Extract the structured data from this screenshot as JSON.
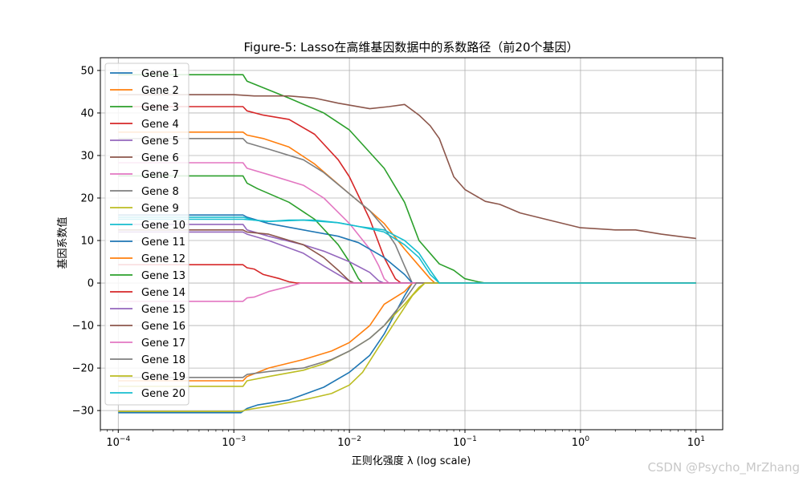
{
  "watermark": "CSDN @Psycho_MrZhang",
  "chart_data": {
    "type": "line",
    "title": "Figure-5: Lasso在高维基因数据中的系数路径（前20个基因）",
    "xlabel": "正则化强度 λ (log scale)",
    "ylabel": "基因系数值",
    "xscale": "log",
    "xlim": [
      7e-05,
      17
    ],
    "ylim": [
      -34.5,
      53
    ],
    "x_ticks": [
      0.0001,
      0.001,
      0.01,
      0.1,
      1,
      10
    ],
    "x_tick_labels": [
      {
        "base": "10",
        "exp": "−4"
      },
      {
        "base": "10",
        "exp": "−3"
      },
      {
        "base": "10",
        "exp": "−2"
      },
      {
        "base": "10",
        "exp": "−1"
      },
      {
        "base": "10",
        "exp": "0"
      },
      {
        "base": "10",
        "exp": "1"
      }
    ],
    "y_ticks": [
      -30,
      -20,
      -10,
      0,
      10,
      20,
      30,
      40,
      50
    ],
    "y_tick_labels": [
      "−30",
      "−20",
      "−10",
      "0",
      "10",
      "20",
      "30",
      "40",
      "50"
    ],
    "grid": true,
    "legend_position": "top-left",
    "series": [
      {
        "name": "Gene 1",
        "color": "#1f77b4",
        "points": [
          [
            0.0001,
            -30.5
          ],
          [
            0.00115,
            -30.5
          ],
          [
            0.0013,
            -29.5
          ],
          [
            0.0016,
            -28.7
          ],
          [
            0.003,
            -27.5
          ],
          [
            0.006,
            -24.5
          ],
          [
            0.01,
            -21
          ],
          [
            0.015,
            -17
          ],
          [
            0.02,
            -12
          ],
          [
            0.025,
            -7
          ],
          [
            0.03,
            -3
          ],
          [
            0.035,
            0
          ],
          [
            10,
            0
          ]
        ]
      },
      {
        "name": "Gene 2",
        "color": "#ff7f0e",
        "points": [
          [
            0.0001,
            35.5
          ],
          [
            0.0012,
            35.5
          ],
          [
            0.0013,
            34.8
          ],
          [
            0.0018,
            34
          ],
          [
            0.003,
            32
          ],
          [
            0.005,
            28
          ],
          [
            0.01,
            21
          ],
          [
            0.015,
            17
          ],
          [
            0.02,
            14
          ],
          [
            0.03,
            8
          ],
          [
            0.05,
            1
          ],
          [
            0.055,
            0
          ],
          [
            10,
            0
          ]
        ]
      },
      {
        "name": "Gene 3",
        "color": "#2ca02c",
        "points": [
          [
            0.0001,
            49
          ],
          [
            0.0012,
            49
          ],
          [
            0.0013,
            47.5
          ],
          [
            0.0016,
            46.5
          ],
          [
            0.003,
            43.5
          ],
          [
            0.006,
            40
          ],
          [
            0.01,
            36
          ],
          [
            0.02,
            27
          ],
          [
            0.03,
            19
          ],
          [
            0.04,
            10
          ],
          [
            0.06,
            4.5
          ],
          [
            0.08,
            3
          ],
          [
            0.1,
            1
          ],
          [
            0.13,
            0.3
          ],
          [
            0.15,
            0
          ],
          [
            10,
            0
          ]
        ]
      },
      {
        "name": "Gene 4",
        "color": "#d62728",
        "points": [
          [
            0.0001,
            41.5
          ],
          [
            0.0012,
            41.5
          ],
          [
            0.0013,
            40.5
          ],
          [
            0.0018,
            39.5
          ],
          [
            0.003,
            38.5
          ],
          [
            0.005,
            35
          ],
          [
            0.008,
            29
          ],
          [
            0.01,
            25
          ],
          [
            0.015,
            15
          ],
          [
            0.02,
            6
          ],
          [
            0.025,
            1
          ],
          [
            0.028,
            0
          ],
          [
            10,
            0
          ]
        ]
      },
      {
        "name": "Gene 5",
        "color": "#9467bd",
        "points": [
          [
            0.0001,
            12
          ],
          [
            0.0012,
            12
          ],
          [
            0.0013,
            11.5
          ],
          [
            0.002,
            10
          ],
          [
            0.004,
            7
          ],
          [
            0.006,
            4
          ],
          [
            0.008,
            2
          ],
          [
            0.01,
            0.5
          ],
          [
            0.011,
            0
          ],
          [
            10,
            0
          ]
        ]
      },
      {
        "name": "Gene 6",
        "color": "#8c564b",
        "points": [
          [
            0.0001,
            44.3
          ],
          [
            0.001,
            44.3
          ],
          [
            0.0015,
            44
          ],
          [
            0.003,
            44
          ],
          [
            0.005,
            43.5
          ],
          [
            0.008,
            42.3
          ],
          [
            0.015,
            41
          ],
          [
            0.022,
            41.5
          ],
          [
            0.03,
            42
          ],
          [
            0.04,
            39.5
          ],
          [
            0.05,
            37
          ],
          [
            0.06,
            34
          ],
          [
            0.08,
            25
          ],
          [
            0.1,
            22
          ],
          [
            0.15,
            19.2
          ],
          [
            0.2,
            18.5
          ],
          [
            0.3,
            16.5
          ],
          [
            0.5,
            15
          ],
          [
            1,
            13
          ],
          [
            2,
            12.5
          ],
          [
            3,
            12.5
          ],
          [
            5,
            11.5
          ],
          [
            8,
            10.8
          ],
          [
            10,
            10.5
          ]
        ]
      },
      {
        "name": "Gene 7",
        "color": "#e377c2",
        "points": [
          [
            0.0001,
            28.3
          ],
          [
            0.0012,
            28.3
          ],
          [
            0.0013,
            27
          ],
          [
            0.002,
            25.5
          ],
          [
            0.004,
            23
          ],
          [
            0.006,
            20
          ],
          [
            0.01,
            14
          ],
          [
            0.015,
            8
          ],
          [
            0.018,
            4
          ],
          [
            0.02,
            1
          ],
          [
            0.022,
            0
          ],
          [
            10,
            0
          ]
        ]
      },
      {
        "name": "Gene 8",
        "color": "#7f7f7f",
        "points": [
          [
            0.0001,
            34
          ],
          [
            0.0012,
            34
          ],
          [
            0.0013,
            33
          ],
          [
            0.002,
            31.5
          ],
          [
            0.004,
            29
          ],
          [
            0.006,
            26
          ],
          [
            0.01,
            21
          ],
          [
            0.015,
            17
          ],
          [
            0.02,
            13
          ],
          [
            0.025,
            9
          ],
          [
            0.03,
            4
          ],
          [
            0.035,
            0
          ],
          [
            10,
            0
          ]
        ]
      },
      {
        "name": "Gene 9",
        "color": "#bcbd22",
        "points": [
          [
            0.0001,
            -24.3
          ],
          [
            0.0012,
            -24.3
          ],
          [
            0.0013,
            -23
          ],
          [
            0.002,
            -22
          ],
          [
            0.004,
            -20.5
          ],
          [
            0.006,
            -19
          ],
          [
            0.01,
            -16
          ],
          [
            0.015,
            -13
          ],
          [
            0.02,
            -10
          ],
          [
            0.03,
            -5
          ],
          [
            0.04,
            -1
          ],
          [
            0.045,
            0
          ],
          [
            10,
            0
          ]
        ]
      },
      {
        "name": "Gene 10",
        "color": "#17becf",
        "points": [
          [
            0.0001,
            15
          ],
          [
            0.0012,
            15
          ],
          [
            0.0015,
            14.8
          ],
          [
            0.002,
            14.5
          ],
          [
            0.003,
            14.8
          ],
          [
            0.005,
            14.8
          ],
          [
            0.008,
            14.2
          ],
          [
            0.012,
            13.3
          ],
          [
            0.02,
            12
          ],
          [
            0.03,
            9
          ],
          [
            0.04,
            6
          ],
          [
            0.05,
            2
          ],
          [
            0.06,
            0
          ],
          [
            10,
            0
          ]
        ]
      },
      {
        "name": "Gene 11",
        "color": "#1f77b4",
        "points": [
          [
            0.0001,
            16
          ],
          [
            0.0012,
            16
          ],
          [
            0.0013,
            15.5
          ],
          [
            0.002,
            14
          ],
          [
            0.004,
            12.5
          ],
          [
            0.008,
            11
          ],
          [
            0.012,
            9.5
          ],
          [
            0.02,
            6
          ],
          [
            0.03,
            2
          ],
          [
            0.035,
            0
          ],
          [
            10,
            0
          ]
        ]
      },
      {
        "name": "Gene 12",
        "color": "#ff7f0e",
        "points": [
          [
            0.0001,
            -23
          ],
          [
            0.0012,
            -23
          ],
          [
            0.0013,
            -22
          ],
          [
            0.002,
            -20
          ],
          [
            0.004,
            -18
          ],
          [
            0.007,
            -16
          ],
          [
            0.01,
            -14
          ],
          [
            0.015,
            -10
          ],
          [
            0.02,
            -5
          ],
          [
            0.03,
            -2
          ],
          [
            0.035,
            0
          ],
          [
            10,
            0
          ]
        ]
      },
      {
        "name": "Gene 13",
        "color": "#2ca02c",
        "points": [
          [
            0.0001,
            25.2
          ],
          [
            0.0012,
            25.2
          ],
          [
            0.0013,
            23.5
          ],
          [
            0.0016,
            22.2
          ],
          [
            0.003,
            19
          ],
          [
            0.005,
            15
          ],
          [
            0.008,
            9
          ],
          [
            0.01,
            5
          ],
          [
            0.012,
            1
          ],
          [
            0.013,
            0
          ],
          [
            10,
            0
          ]
        ]
      },
      {
        "name": "Gene 14",
        "color": "#d62728",
        "points": [
          [
            0.0001,
            4.3
          ],
          [
            0.0012,
            4.3
          ],
          [
            0.0013,
            3.6
          ],
          [
            0.0015,
            3.3
          ],
          [
            0.0018,
            2
          ],
          [
            0.0025,
            1
          ],
          [
            0.003,
            0.3
          ],
          [
            0.0035,
            0
          ],
          [
            10,
            0
          ]
        ]
      },
      {
        "name": "Gene 15",
        "color": "#9467bd",
        "points": [
          [
            0.0001,
            13.8
          ],
          [
            0.0012,
            13.8
          ],
          [
            0.0013,
            12.5
          ],
          [
            0.002,
            11
          ],
          [
            0.004,
            9
          ],
          [
            0.006,
            7.5
          ],
          [
            0.01,
            5
          ],
          [
            0.015,
            2.5
          ],
          [
            0.018,
            0.5
          ],
          [
            0.02,
            0
          ],
          [
            10,
            0
          ]
        ]
      },
      {
        "name": "Gene 16",
        "color": "#8c564b",
        "points": [
          [
            0.0001,
            12.5
          ],
          [
            0.0012,
            12.5
          ],
          [
            0.0013,
            12
          ],
          [
            0.002,
            11.5
          ],
          [
            0.004,
            9
          ],
          [
            0.006,
            6
          ],
          [
            0.008,
            3
          ],
          [
            0.01,
            0.5
          ],
          [
            0.011,
            0
          ],
          [
            10,
            0
          ]
        ]
      },
      {
        "name": "Gene 17",
        "color": "#e377c2",
        "points": [
          [
            0.0001,
            -4.3
          ],
          [
            0.0012,
            -4.3
          ],
          [
            0.0013,
            -3.5
          ],
          [
            0.0015,
            -3.3
          ],
          [
            0.002,
            -2
          ],
          [
            0.003,
            -0.8
          ],
          [
            0.0038,
            0
          ],
          [
            10,
            0
          ]
        ]
      },
      {
        "name": "Gene 18",
        "color": "#7f7f7f",
        "points": [
          [
            0.0001,
            -22.2
          ],
          [
            0.0012,
            -22.2
          ],
          [
            0.0013,
            -21.5
          ],
          [
            0.002,
            -20.8
          ],
          [
            0.004,
            -20
          ],
          [
            0.007,
            -18
          ],
          [
            0.01,
            -16
          ],
          [
            0.015,
            -13
          ],
          [
            0.02,
            -10
          ],
          [
            0.03,
            -4
          ],
          [
            0.038,
            0
          ],
          [
            10,
            0
          ]
        ]
      },
      {
        "name": "Gene 19",
        "color": "#bcbd22",
        "points": [
          [
            0.0001,
            -30.2
          ],
          [
            0.00115,
            -30.2
          ],
          [
            0.0013,
            -29.8
          ],
          [
            0.002,
            -29
          ],
          [
            0.004,
            -27.5
          ],
          [
            0.007,
            -26
          ],
          [
            0.01,
            -24
          ],
          [
            0.013,
            -21
          ],
          [
            0.018,
            -15
          ],
          [
            0.025,
            -9
          ],
          [
            0.035,
            -3
          ],
          [
            0.045,
            0
          ],
          [
            10,
            0
          ]
        ]
      },
      {
        "name": "Gene 20",
        "color": "#17becf",
        "points": [
          [
            0.0001,
            15.5
          ],
          [
            0.0012,
            15.5
          ],
          [
            0.0015,
            14.8
          ],
          [
            0.002,
            14.5
          ],
          [
            0.004,
            14.8
          ],
          [
            0.008,
            14.2
          ],
          [
            0.012,
            13.3
          ],
          [
            0.02,
            12.5
          ],
          [
            0.03,
            10
          ],
          [
            0.04,
            7
          ],
          [
            0.05,
            3
          ],
          [
            0.06,
            0
          ],
          [
            10,
            0
          ]
        ]
      }
    ]
  }
}
